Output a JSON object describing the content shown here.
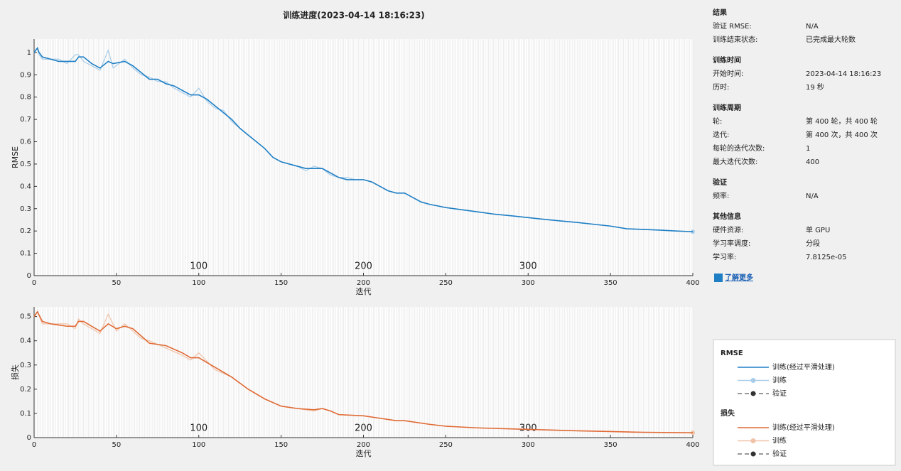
{
  "title": "训练进度(2023-04-14 18:16:23)",
  "chart_data": [
    {
      "type": "line",
      "ylabel": "RMSE",
      "xlabel": "迭代",
      "x": [
        0,
        2,
        3,
        5,
        10,
        15,
        20,
        25,
        27,
        30,
        35,
        40,
        45,
        48,
        55,
        60,
        65,
        70,
        75,
        80,
        85,
        90,
        95,
        100,
        105,
        110,
        115,
        120,
        125,
        130,
        135,
        140,
        145,
        150,
        155,
        160,
        165,
        170,
        175,
        180,
        185,
        190,
        195,
        200,
        205,
        210,
        215,
        220,
        225,
        230,
        235,
        240,
        250,
        260,
        270,
        280,
        290,
        300,
        310,
        320,
        330,
        340,
        350,
        360,
        370,
        380,
        390,
        400
      ],
      "series": [
        {
          "name": "训练",
          "color": "#a9cde9",
          "values": [
            1.0,
            1.02,
            0.99,
            0.97,
            0.97,
            0.97,
            0.95,
            0.99,
            0.99,
            0.96,
            0.94,
            0.92,
            1.01,
            0.93,
            0.97,
            0.93,
            0.9,
            0.89,
            0.87,
            0.87,
            0.84,
            0.82,
            0.8,
            0.84,
            0.78,
            0.75,
            0.74,
            0.69,
            0.66,
            0.63,
            0.6,
            0.57,
            0.53,
            0.51,
            0.5,
            0.49,
            0.47,
            0.49,
            0.48,
            0.45,
            0.44,
            0.44,
            0.43,
            0.43,
            0.42,
            0.4,
            0.38,
            0.37,
            0.37,
            0.35,
            0.33,
            0.32,
            0.305,
            0.295,
            0.285,
            0.275,
            0.268,
            0.26,
            0.252,
            0.245,
            0.238,
            0.23,
            0.222,
            0.21,
            0.207,
            0.204,
            0.2,
            0.197
          ]
        },
        {
          "name": "训练(经过平滑处理)",
          "color": "#1f7fc5",
          "values": [
            1.0,
            1.02,
            1.0,
            0.98,
            0.97,
            0.96,
            0.96,
            0.96,
            0.98,
            0.98,
            0.95,
            0.93,
            0.96,
            0.95,
            0.96,
            0.94,
            0.91,
            0.88,
            0.88,
            0.86,
            0.85,
            0.83,
            0.81,
            0.81,
            0.79,
            0.76,
            0.73,
            0.7,
            0.66,
            0.63,
            0.6,
            0.57,
            0.53,
            0.51,
            0.5,
            0.49,
            0.48,
            0.48,
            0.48,
            0.46,
            0.44,
            0.43,
            0.43,
            0.43,
            0.42,
            0.4,
            0.38,
            0.37,
            0.37,
            0.35,
            0.33,
            0.32,
            0.305,
            0.295,
            0.285,
            0.275,
            0.268,
            0.26,
            0.252,
            0.245,
            0.238,
            0.23,
            0.222,
            0.21,
            0.207,
            0.204,
            0.2,
            0.197
          ]
        }
      ],
      "xlim": [
        0,
        400
      ],
      "xticks": [
        0,
        50,
        100,
        150,
        200,
        250,
        300,
        350,
        400
      ],
      "ylim": [
        0,
        1.06
      ],
      "yticks": [
        0,
        0.1,
        0.2,
        0.3,
        0.4,
        0.5,
        0.6,
        0.7,
        0.8,
        0.9,
        1
      ],
      "x2ticks": [
        100,
        200,
        300
      ]
    },
    {
      "type": "line",
      "ylabel": "损失",
      "xlabel": "迭代",
      "x": [
        0,
        2,
        5,
        10,
        20,
        25,
        27,
        30,
        35,
        40,
        45,
        50,
        55,
        60,
        65,
        70,
        80,
        90,
        95,
        100,
        110,
        120,
        130,
        140,
        150,
        160,
        170,
        175,
        180,
        185,
        200,
        210,
        220,
        225,
        240,
        250,
        270,
        300,
        330,
        350,
        370,
        400
      ],
      "series": [
        {
          "name": "训练",
          "color": "#f0c2a8",
          "values": [
            0.5,
            0.52,
            0.47,
            0.47,
            0.47,
            0.45,
            0.49,
            0.47,
            0.45,
            0.43,
            0.51,
            0.44,
            0.47,
            0.44,
            0.41,
            0.4,
            0.37,
            0.34,
            0.32,
            0.35,
            0.28,
            0.25,
            0.2,
            0.16,
            0.13,
            0.12,
            0.11,
            0.12,
            0.11,
            0.095,
            0.09,
            0.08,
            0.07,
            0.07,
            0.055,
            0.047,
            0.04,
            0.034,
            0.028,
            0.025,
            0.022,
            0.02
          ]
        },
        {
          "name": "训练(经过平滑处理)",
          "color": "#e06a35",
          "values": [
            0.5,
            0.52,
            0.48,
            0.47,
            0.46,
            0.46,
            0.48,
            0.48,
            0.46,
            0.44,
            0.47,
            0.45,
            0.46,
            0.45,
            0.42,
            0.39,
            0.38,
            0.35,
            0.33,
            0.33,
            0.29,
            0.25,
            0.2,
            0.16,
            0.13,
            0.12,
            0.115,
            0.12,
            0.11,
            0.095,
            0.09,
            0.08,
            0.07,
            0.07,
            0.055,
            0.047,
            0.04,
            0.034,
            0.028,
            0.025,
            0.022,
            0.02
          ]
        }
      ],
      "xlim": [
        0,
        400
      ],
      "xticks": [
        0,
        50,
        100,
        150,
        200,
        250,
        300,
        350,
        400
      ],
      "ylim": [
        0,
        0.54
      ],
      "yticks": [
        0,
        0.1,
        0.2,
        0.3,
        0.4,
        0.5
      ],
      "x2ticks": [
        100,
        200,
        300
      ]
    }
  ],
  "info": [
    {
      "title": "结果",
      "rows": [
        [
          "验证 RMSE:",
          "N/A"
        ],
        [
          "训练结束状态:",
          "已完成最大轮数"
        ]
      ]
    },
    {
      "title": "训练时间",
      "rows": [
        [
          "开始时间:",
          "2023-04-14 18:16:23"
        ],
        [
          "历时:",
          "19 秒"
        ]
      ]
    },
    {
      "title": "训练周期",
      "rows": [
        [
          "轮:",
          "第 400 轮，共 400 轮"
        ],
        [
          "迭代:",
          "第 400 次，共 400 次"
        ],
        [
          "每轮的迭代次数:",
          "1"
        ],
        [
          "最大迭代次数:",
          "400"
        ]
      ]
    },
    {
      "title": "验证",
      "rows": [
        [
          "频率:",
          "N/A"
        ]
      ]
    },
    {
      "title": "其他信息",
      "rows": [
        [
          "硬件资源:",
          "单 GPU"
        ],
        [
          "学习率调度:",
          "分段"
        ],
        [
          "学习率:",
          "7.8125e-05"
        ]
      ]
    }
  ],
  "link": "了解更多",
  "legend": [
    {
      "title": "RMSE",
      "validation": "验证"
    },
    {
      "title": "损失",
      "validation": "验证"
    }
  ]
}
